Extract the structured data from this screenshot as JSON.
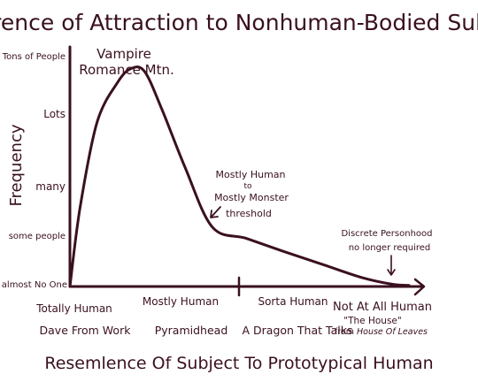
{
  "colors": {
    "ink": "#3a1020",
    "background": "#ffffff"
  },
  "chart_data": {
    "type": "line",
    "title": "Occurence of Attraction to Nonhuman-Bodied Subjects",
    "xlabel": "Resemlence Of Subject To Prototypical Human",
    "ylabel": "Frequency",
    "y_ticks": [
      "Tons of People",
      "Lots",
      "many",
      "some people",
      "almost No One"
    ],
    "x_categories": [
      {
        "label": "Totally Human",
        "example": "Dave From Work"
      },
      {
        "label": "Mostly Human",
        "example": "Pyramidhead"
      },
      {
        "label": "Sorta Human",
        "example": "A Dragon That Talks"
      },
      {
        "label": "Not At All Human",
        "example_quote": "\"The House\"",
        "example_from": "from",
        "example_title": "House Of Leaves"
      }
    ],
    "ylim": [
      0,
      4
    ],
    "xlim": [
      0,
      1
    ],
    "series": [
      {
        "x": [
          0,
          0.03,
          0.08,
          0.14,
          0.18,
          0.22,
          0.27,
          0.34,
          0.42,
          0.52,
          0.63,
          0.75,
          0.86,
          0.95,
          1.0
        ],
        "y": [
          0.0,
          1.4,
          2.9,
          3.6,
          3.85,
          3.8,
          3.15,
          2.1,
          1.05,
          0.85,
          0.62,
          0.38,
          0.16,
          0.04,
          0.02
        ]
      }
    ],
    "annotations": {
      "peak": {
        "line1": "Vampire",
        "line2": "Romance Mtn."
      },
      "threshold": {
        "line1": "Mostly Human",
        "line2": "to",
        "line3": "Mostly Monster",
        "line4": "threshold"
      },
      "discrete": {
        "line1": "Discrete Personhood",
        "line2": "no longer required"
      }
    }
  }
}
